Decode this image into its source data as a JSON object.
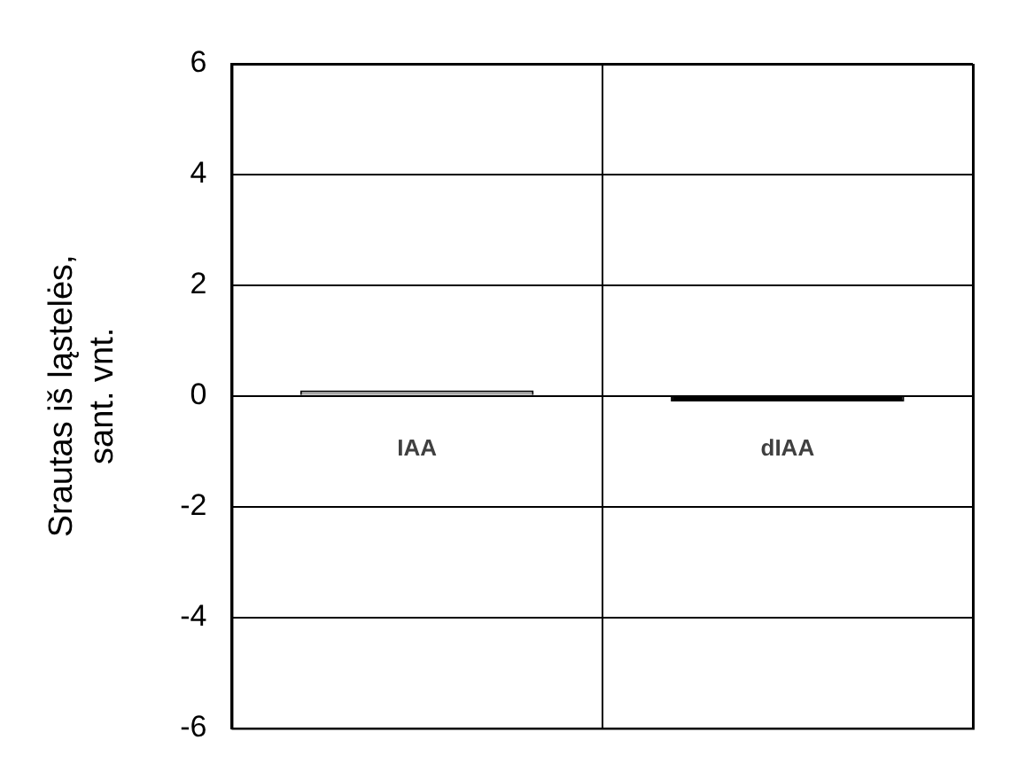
{
  "chart_data": {
    "type": "bar",
    "ylabel": "Srautas iš ląstelės,\nsant. vnt.",
    "categories": [
      "IAA",
      "dIAA"
    ],
    "values": [
      0.1,
      -0.1
    ],
    "colors": [
      "#a6a6a6",
      "#000000"
    ],
    "ylim": [
      -6,
      6
    ],
    "yticks": [
      -6,
      -4,
      -2,
      0,
      2,
      4,
      6
    ],
    "grid": true,
    "legend": false
  }
}
